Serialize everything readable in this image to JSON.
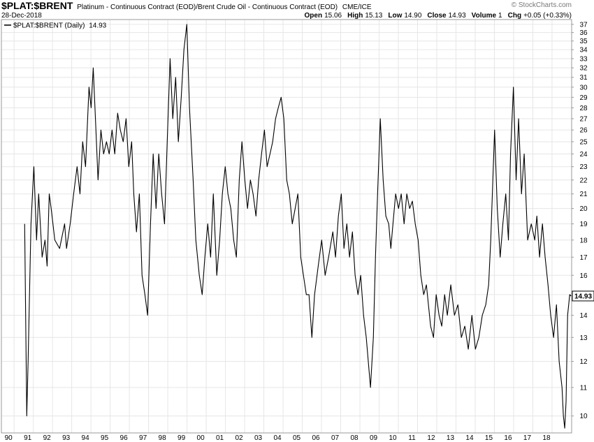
{
  "header": {
    "symbol": "$PLAT:$BRENT",
    "description": "Platinum - Continuous Contract (EOD)/Brent Crude Oil - Continuous Contract (EOD)",
    "exchange": "CME/ICE",
    "date": "28-Dec-2018",
    "credit": "© StockCharts.com",
    "quote": [
      {
        "label": "Open",
        "value": "15.06"
      },
      {
        "label": "High",
        "value": "15.13"
      },
      {
        "label": "Low",
        "value": "14.90"
      },
      {
        "label": "Close",
        "value": "14.93"
      },
      {
        "label": "Volume",
        "value": "1"
      },
      {
        "label": "Chg",
        "value": "+0.05 (+0.33%)"
      }
    ]
  },
  "chart_data": {
    "type": "line",
    "log_scale": true,
    "grid": true,
    "last_value": 14.93,
    "x": [
      1990.55,
      1990.66,
      1990.73,
      1990.88,
      1991.03,
      1991.17,
      1991.28,
      1991.46,
      1991.61,
      1991.72,
      1991.83,
      1991.93,
      1992.12,
      1992.37,
      1992.63,
      1992.73,
      1992.92,
      1993.1,
      1993.28,
      1993.43,
      1993.57,
      1993.72,
      1993.9,
      1994.01,
      1994.12,
      1994.26,
      1994.37,
      1994.52,
      1994.66,
      1994.81,
      1994.95,
      1995.1,
      1995.24,
      1995.39,
      1995.53,
      1995.68,
      1995.83,
      1995.97,
      1996.12,
      1996.23,
      1996.37,
      1996.52,
      1996.66,
      1996.81,
      1996.95,
      1997.1,
      1997.24,
      1997.39,
      1997.53,
      1997.68,
      1997.83,
      1997.97,
      1998.12,
      1998.26,
      1998.41,
      1998.55,
      1998.7,
      1998.84,
      1998.99,
      1999.13,
      1999.32,
      1999.46,
      1999.64,
      1999.79,
      1999.93,
      2000.08,
      2000.23,
      2000.37,
      2000.55,
      2000.7,
      2000.84,
      2000.99,
      2001.13,
      2001.28,
      2001.43,
      2001.57,
      2001.72,
      2001.86,
      2002.01,
      2002.15,
      2002.3,
      2002.44,
      2002.59,
      2002.73,
      2002.88,
      2003.03,
      2003.17,
      2003.32,
      2003.46,
      2003.61,
      2003.75,
      2003.9,
      2004.04,
      2004.19,
      2004.33,
      2004.48,
      2004.63,
      2004.77,
      2004.92,
      2005.06,
      2005.21,
      2005.35,
      2005.5,
      2005.64,
      2005.83,
      2006.01,
      2006.19,
      2006.37,
      2006.59,
      2006.73,
      2006.88,
      2007.03,
      2007.17,
      2007.32,
      2007.46,
      2007.61,
      2007.75,
      2007.9,
      2008.04,
      2008.19,
      2008.33,
      2008.55,
      2008.7,
      2008.81,
      2008.92,
      2009.06,
      2009.21,
      2009.35,
      2009.5,
      2009.61,
      2009.72,
      2009.86,
      2010.01,
      2010.15,
      2010.3,
      2010.44,
      2010.59,
      2010.73,
      2010.88,
      2011.03,
      2011.17,
      2011.32,
      2011.46,
      2011.68,
      2011.83,
      2011.97,
      2012.12,
      2012.26,
      2012.41,
      2012.55,
      2012.73,
      2012.92,
      2013.1,
      2013.28,
      2013.46,
      2013.64,
      2013.83,
      2014.01,
      2014.19,
      2014.37,
      2014.55,
      2014.7,
      2014.81,
      2015.01,
      2015.15,
      2015.3,
      2015.44,
      2015.59,
      2015.73,
      2015.84,
      2015.99,
      2016.13,
      2016.26,
      2016.41,
      2016.55,
      2016.73,
      2016.92,
      2017.1,
      2017.21,
      2017.35,
      2017.5,
      2017.64,
      2017.79,
      2017.93,
      2018.08,
      2018.23,
      2018.37,
      2018.52,
      2018.59,
      2018.66,
      2018.73,
      2018.81,
      2018.92,
      2018.99
    ],
    "series": [
      {
        "name": "$PLAT:$BRENT (Daily)",
        "color": "#000000",
        "values": [
          19,
          10,
          12,
          19,
          23,
          18,
          21,
          17,
          18,
          16.5,
          21,
          20,
          18,
          17.5,
          19,
          17.5,
          19,
          21,
          23,
          21,
          25,
          23,
          30,
          28,
          32,
          26,
          22,
          26,
          24,
          25,
          24,
          26,
          24,
          27.5,
          26,
          25,
          27,
          23,
          25,
          21,
          18.5,
          21,
          16,
          15,
          14,
          19,
          24,
          20,
          24,
          21,
          19,
          25,
          33,
          27,
          31,
          25,
          29,
          34,
          37,
          28,
          22,
          18,
          16,
          15,
          17,
          19,
          17,
          21,
          16,
          18,
          21,
          23,
          21,
          20,
          18,
          17,
          22,
          25,
          22,
          20,
          22,
          21,
          19.5,
          22,
          24,
          26,
          23,
          24,
          25,
          27,
          28,
          29,
          27,
          22,
          21,
          19,
          20,
          21,
          17,
          16,
          15,
          15,
          13,
          15,
          16.5,
          18,
          16,
          17,
          18.5,
          17,
          19.5,
          21,
          17.5,
          19,
          17,
          18.5,
          16,
          15,
          16,
          14,
          13,
          11,
          13,
          17,
          21,
          27,
          22,
          19.5,
          19,
          17.5,
          19,
          21,
          20,
          21,
          19,
          21,
          20,
          20.5,
          19,
          18,
          16,
          15,
          15.5,
          13.5,
          13,
          15,
          14,
          13.5,
          15,
          14,
          15.5,
          14,
          14.5,
          13,
          13.5,
          12.5,
          14,
          12.5,
          13,
          14,
          14.5,
          15.5,
          18,
          26,
          20,
          17,
          19,
          21,
          18,
          24,
          30,
          22,
          27,
          21,
          24,
          18,
          19,
          18,
          19.5,
          17,
          19,
          17,
          15.5,
          14,
          13,
          14.5,
          12,
          11,
          10,
          9.6,
          10.5,
          14,
          15,
          14.93
        ]
      }
    ],
    "xlim": [
      1989.34,
      2019.02
    ],
    "ylim": [
      9.45,
      37.6
    ],
    "xticks": [
      {
        "value": 1990,
        "label": "90"
      },
      {
        "value": 1991,
        "label": "91"
      },
      {
        "value": 1992,
        "label": "92"
      },
      {
        "value": 1993,
        "label": "93"
      },
      {
        "value": 1994,
        "label": "94"
      },
      {
        "value": 1995,
        "label": "95"
      },
      {
        "value": 1996,
        "label": "96"
      },
      {
        "value": 1997,
        "label": "97"
      },
      {
        "value": 1998,
        "label": "98"
      },
      {
        "value": 1999,
        "label": "99"
      },
      {
        "value": 2000,
        "label": "00"
      },
      {
        "value": 2001,
        "label": "01"
      },
      {
        "value": 2002,
        "label": "02"
      },
      {
        "value": 2003,
        "label": "03"
      },
      {
        "value": 2004,
        "label": "04"
      },
      {
        "value": 2005,
        "label": "05"
      },
      {
        "value": 2006,
        "label": "06"
      },
      {
        "value": 2007,
        "label": "07"
      },
      {
        "value": 2008,
        "label": "08"
      },
      {
        "value": 2009,
        "label": "09"
      },
      {
        "value": 2010,
        "label": "10"
      },
      {
        "value": 2011,
        "label": "11"
      },
      {
        "value": 2012,
        "label": "12"
      },
      {
        "value": 2013,
        "label": "13"
      },
      {
        "value": 2014,
        "label": "14"
      },
      {
        "value": 2015,
        "label": "15"
      },
      {
        "value": 2016,
        "label": "16"
      },
      {
        "value": 2017,
        "label": "17"
      },
      {
        "value": 2018,
        "label": "18"
      }
    ],
    "yticks": [
      10,
      11,
      12,
      13,
      14,
      15,
      16,
      17,
      18,
      19,
      20,
      21,
      22,
      23,
      24,
      25,
      26,
      27,
      28,
      29,
      30,
      31,
      32,
      33,
      34,
      35,
      36,
      37
    ]
  }
}
